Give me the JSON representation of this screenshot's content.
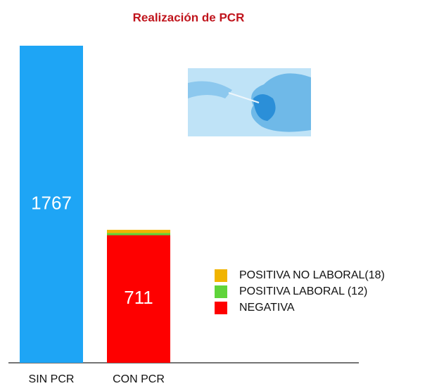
{
  "chart_data": {
    "type": "stacked-bar",
    "title": "Realización de PCR",
    "categories": [
      "SIN PCR",
      "CON PCR"
    ],
    "series": [
      {
        "color": "#1ea5f5",
        "values": [
          1767,
          null
        ]
      },
      {
        "name": "NEGATIVA",
        "color": "#fe0000",
        "values": [
          null,
          711
        ]
      },
      {
        "name": "POSITIVA LABORAL (12)",
        "color": "#5fd43a",
        "values": [
          null,
          12
        ]
      },
      {
        "name": "POSITIVA NO LABORAL(18)",
        "color": "#f1b400",
        "values": [
          null,
          18
        ]
      }
    ],
    "data_labels": true
  }
}
